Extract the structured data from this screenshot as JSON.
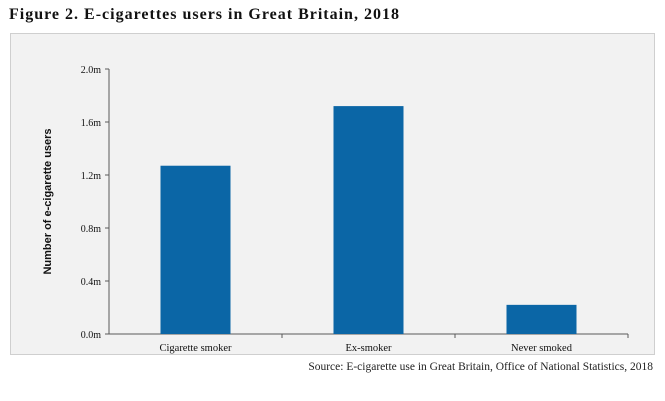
{
  "figure": {
    "title": "Figure 2. E-cigarettes users in Great Britain, 2018",
    "source": "Source: E-cigarette use in Great Britain, Office of National Statistics, 2018"
  },
  "colors": {
    "bar": "#0b66a6",
    "axis": "#595959",
    "background": "#f2f2f2",
    "text": "#111111"
  },
  "chart_data": {
    "type": "bar",
    "title": "",
    "xlabel": "",
    "ylabel": "Number of e-cigarette users",
    "categories": [
      "Cigarette smoker",
      "Ex-smoker",
      "Never smoked"
    ],
    "values": [
      1.27,
      1.72,
      0.22
    ],
    "value_labels": [
      "",
      "",
      ""
    ],
    "ylim": [
      0,
      2.0
    ],
    "yticks": [
      0,
      0.4,
      0.8,
      1.2,
      1.6,
      2.0
    ],
    "ytick_labels": [
      "0.0m",
      "0.4m",
      "0.8m",
      "1.2m",
      "1.6m",
      "2.0m"
    ],
    "grid": false,
    "legend": "none"
  }
}
